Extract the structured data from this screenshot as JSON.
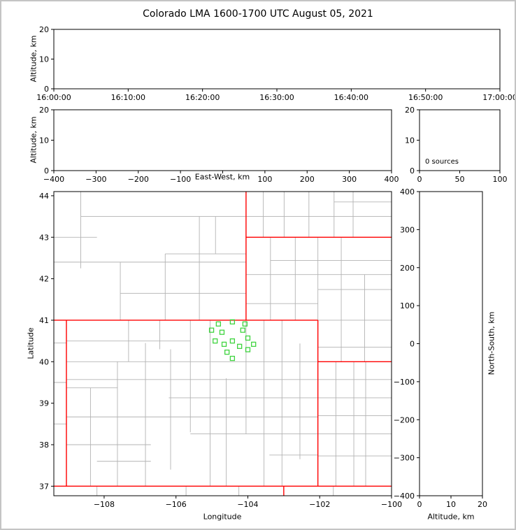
{
  "title": "Colorado LMA 1600-1700 UTC August 05, 2021",
  "colors": {
    "county_line": "#b3b3b3",
    "state_line": "#ff0000",
    "station_marker": "#3fd43f",
    "axis": "#000000",
    "background": "#ffffff"
  },
  "chart_data": [
    {
      "id": "time_altitude",
      "type": "scatter",
      "xlabel": "",
      "ylabel": "Altitude, km",
      "xlim": [
        0,
        6
      ],
      "ylim": [
        0,
        20
      ],
      "xticks": [
        {
          "v": 0,
          "label": "16:00:00"
        },
        {
          "v": 1,
          "label": "16:10:00"
        },
        {
          "v": 2,
          "label": "16:20:00"
        },
        {
          "v": 3,
          "label": "16:30:00"
        },
        {
          "v": 4,
          "label": "16:40:00"
        },
        {
          "v": 5,
          "label": "16:50:00"
        },
        {
          "v": 6,
          "label": "17:00:00"
        }
      ],
      "yticks": [
        {
          "v": 0,
          "label": "0"
        },
        {
          "v": 10,
          "label": "10"
        },
        {
          "v": 20,
          "label": "20"
        }
      ],
      "points": []
    },
    {
      "id": "eastwest_altitude",
      "type": "scatter",
      "xlabel": "East-West, km",
      "ylabel": "Altitude, km",
      "xlim": [
        -400,
        400
      ],
      "ylim": [
        0,
        20
      ],
      "xticks": [
        {
          "v": -400,
          "label": "−400"
        },
        {
          "v": -300,
          "label": "−300"
        },
        {
          "v": -200,
          "label": "−200"
        },
        {
          "v": -100,
          "label": "−100"
        },
        {
          "v": 0,
          "label": ""
        },
        {
          "v": 100,
          "label": "100"
        },
        {
          "v": 200,
          "label": "200"
        },
        {
          "v": 300,
          "label": "300"
        },
        {
          "v": 400,
          "label": "400"
        }
      ],
      "yticks": [
        {
          "v": 0,
          "label": "0"
        },
        {
          "v": 10,
          "label": "10"
        },
        {
          "v": 20,
          "label": "20"
        }
      ],
      "points": []
    },
    {
      "id": "source_histogram",
      "type": "bar",
      "xlabel": "",
      "ylabel": "",
      "annotation": "0 sources",
      "xlim": [
        0,
        100
      ],
      "ylim": [
        0,
        20
      ],
      "xticks": [
        {
          "v": 0,
          "label": "0"
        },
        {
          "v": 50,
          "label": "50"
        },
        {
          "v": 100,
          "label": "100"
        }
      ],
      "yticks": [
        {
          "v": 0,
          "label": "0"
        },
        {
          "v": 10,
          "label": "10"
        },
        {
          "v": 20,
          "label": "20"
        }
      ],
      "points": []
    },
    {
      "id": "map",
      "type": "scatter",
      "xlabel": "Longitude",
      "ylabel": "Latitude",
      "xlim": [
        -109.4,
        -100
      ],
      "ylim": [
        36.77,
        44.1
      ],
      "xticks": [
        {
          "v": -108,
          "label": "−108"
        },
        {
          "v": -106,
          "label": "−106"
        },
        {
          "v": -104,
          "label": "−104"
        },
        {
          "v": -102,
          "label": "−102"
        },
        {
          "v": -100,
          "label": "−100"
        }
      ],
      "yticks": [
        {
          "v": 37,
          "label": "37"
        },
        {
          "v": 38,
          "label": "38"
        },
        {
          "v": 39,
          "label": "39"
        },
        {
          "v": 40,
          "label": "40"
        },
        {
          "v": 41,
          "label": "41"
        },
        {
          "v": 42,
          "label": "42"
        },
        {
          "v": 43,
          "label": "43"
        },
        {
          "v": 44,
          "label": "44"
        }
      ],
      "stations": [
        [
          -104.82,
          40.91
        ],
        [
          -104.43,
          40.96
        ],
        [
          -104.08,
          40.91
        ],
        [
          -105.01,
          40.76
        ],
        [
          -104.72,
          40.71
        ],
        [
          -104.14,
          40.76
        ],
        [
          -104.91,
          40.5
        ],
        [
          -104.43,
          40.5
        ],
        [
          -104.0,
          40.57
        ],
        [
          -104.66,
          40.42
        ],
        [
          -104.23,
          40.37
        ],
        [
          -103.84,
          40.42
        ],
        [
          -104.58,
          40.23
        ],
        [
          -104.0,
          40.29
        ],
        [
          -104.43,
          40.08
        ]
      ],
      "state_borders": [
        [
          [
            -109.4,
            41.0
          ],
          [
            -102.05,
            41.0
          ]
        ],
        [
          [
            -109.05,
            41.0
          ],
          [
            -109.05,
            37.0
          ]
        ],
        [
          [
            -102.05,
            41.0
          ],
          [
            -102.05,
            37.0
          ]
        ],
        [
          [
            -109.4,
            37.0
          ],
          [
            -100.0,
            37.0
          ]
        ],
        [
          [
            -104.05,
            44.1
          ],
          [
            -104.05,
            41.0
          ]
        ],
        [
          [
            -104.05,
            43.0
          ],
          [
            -100.0,
            43.0
          ]
        ],
        [
          [
            -102.05,
            40.0
          ],
          [
            -100.0,
            40.0
          ]
        ],
        [
          [
            -103.0,
            37.0
          ],
          [
            -103.0,
            36.77
          ]
        ]
      ],
      "county_lines": [
        [
          -108.38,
          37.0,
          -108.38,
          39.37
        ],
        [
          -107.63,
          37.0,
          -107.63,
          40.0
        ],
        [
          -106.85,
          37.0,
          -106.85,
          40.45
        ],
        [
          -106.15,
          37.4,
          -106.15,
          40.3
        ],
        [
          -105.6,
          38.3,
          -105.6,
          41.0
        ],
        [
          -105.05,
          37.0,
          -105.05,
          41.0
        ],
        [
          -104.6,
          37.0,
          -104.6,
          39.6
        ],
        [
          -104.05,
          38.26,
          -104.05,
          41.0
        ],
        [
          -103.55,
          37.0,
          -103.55,
          41.0
        ],
        [
          -103.05,
          37.0,
          -103.05,
          41.0
        ],
        [
          -102.55,
          37.65,
          -102.55,
          40.44
        ],
        [
          -107.32,
          40.0,
          -107.32,
          41.0
        ],
        [
          -106.45,
          40.3,
          -106.45,
          41.0
        ],
        [
          -109.05,
          40.5,
          -105.6,
          40.5
        ],
        [
          -109.05,
          40.0,
          -102.05,
          40.0
        ],
        [
          -109.05,
          39.57,
          -102.05,
          39.57
        ],
        [
          -106.2,
          39.13,
          -102.05,
          39.13
        ],
        [
          -109.05,
          38.67,
          -102.05,
          38.67
        ],
        [
          -105.6,
          38.26,
          -102.05,
          38.26
        ],
        [
          -109.05,
          38.0,
          -106.7,
          38.0
        ],
        [
          -108.2,
          37.6,
          -106.7,
          37.6
        ],
        [
          -103.4,
          37.75,
          -102.05,
          37.75
        ],
        [
          -109.05,
          39.37,
          -107.63,
          39.37
        ],
        [
          -108.65,
          42.25,
          -108.65,
          44.1
        ],
        [
          -107.55,
          41.0,
          -107.55,
          42.4
        ],
        [
          -106.3,
          41.0,
          -106.3,
          42.6
        ],
        [
          -105.35,
          41.0,
          -105.35,
          43.5
        ],
        [
          -104.9,
          42.6,
          -104.9,
          43.5
        ],
        [
          -107.55,
          41.65,
          -104.05,
          41.65
        ],
        [
          -109.4,
          42.4,
          -104.05,
          42.4
        ],
        [
          -109.4,
          43.0,
          -108.2,
          43.0
        ],
        [
          -108.65,
          43.5,
          -104.05,
          43.5
        ],
        [
          -106.3,
          42.6,
          -104.05,
          42.6
        ],
        [
          -103.37,
          41.0,
          -103.37,
          43.0
        ],
        [
          -102.68,
          41.0,
          -102.68,
          43.0
        ],
        [
          -102.05,
          41.0,
          -102.05,
          43.0
        ],
        [
          -101.4,
          40.0,
          -101.4,
          43.0
        ],
        [
          -100.75,
          40.0,
          -100.75,
          42.1
        ],
        [
          -104.05,
          41.4,
          -102.05,
          41.4
        ],
        [
          -104.05,
          42.1,
          -100.0,
          42.1
        ],
        [
          -103.37,
          42.44,
          -100.0,
          42.44
        ],
        [
          -102.05,
          41.74,
          -100.0,
          41.74
        ],
        [
          -102.05,
          41.0,
          -100.0,
          41.0
        ],
        [
          -103.57,
          43.0,
          -103.57,
          44.1
        ],
        [
          -102.99,
          43.0,
          -102.99,
          44.1
        ],
        [
          -102.3,
          43.0,
          -102.3,
          44.1
        ],
        [
          -101.6,
          43.0,
          -101.6,
          44.1
        ],
        [
          -101.07,
          43.0,
          -101.07,
          44.1
        ],
        [
          -104.05,
          43.5,
          -100.0,
          43.5
        ],
        [
          -101.6,
          43.85,
          -100.0,
          43.85
        ],
        [
          -101.55,
          37.0,
          -101.55,
          40.0
        ],
        [
          -101.05,
          37.0,
          -101.05,
          40.0
        ],
        [
          -100.72,
          37.0,
          -100.72,
          40.0
        ],
        [
          -102.05,
          40.35,
          -100.0,
          40.35
        ],
        [
          -102.05,
          39.57,
          -100.0,
          39.57
        ],
        [
          -102.05,
          39.13,
          -100.0,
          39.13
        ],
        [
          -102.05,
          38.7,
          -100.0,
          38.7
        ],
        [
          -102.05,
          38.26,
          -100.0,
          38.26
        ],
        [
          -102.05,
          37.73,
          -100.0,
          37.73
        ],
        [
          -109.4,
          40.45,
          -109.05,
          40.45
        ],
        [
          -109.4,
          39.5,
          -109.05,
          39.5
        ],
        [
          -109.4,
          38.5,
          -109.05,
          38.5
        ],
        [
          -105.72,
          36.77,
          -105.72,
          37.0
        ],
        [
          -104.25,
          36.77,
          -104.25,
          37.0
        ],
        [
          -108.2,
          36.77,
          -108.2,
          37.0
        ],
        [
          -101.62,
          36.77,
          -101.62,
          37.0
        ]
      ]
    },
    {
      "id": "northsouth_altitude",
      "type": "scatter",
      "xlabel": "Altitude, km",
      "ylabel_right": "North-South, km",
      "xlim": [
        0,
        20
      ],
      "ylim": [
        -400,
        400
      ],
      "xticks": [
        {
          "v": 0,
          "label": "0"
        },
        {
          "v": 10,
          "label": "10"
        },
        {
          "v": 20,
          "label": "20"
        }
      ],
      "yticks": [
        {
          "v": 400,
          "label": "400"
        },
        {
          "v": 300,
          "label": "300"
        },
        {
          "v": 200,
          "label": "200"
        },
        {
          "v": 100,
          "label": "100"
        },
        {
          "v": 0,
          "label": "0"
        },
        {
          "v": -100,
          "label": "−100"
        },
        {
          "v": -200,
          "label": "−200"
        },
        {
          "v": -300,
          "label": "−300"
        },
        {
          "v": -400,
          "label": "−400"
        }
      ],
      "points": []
    }
  ]
}
